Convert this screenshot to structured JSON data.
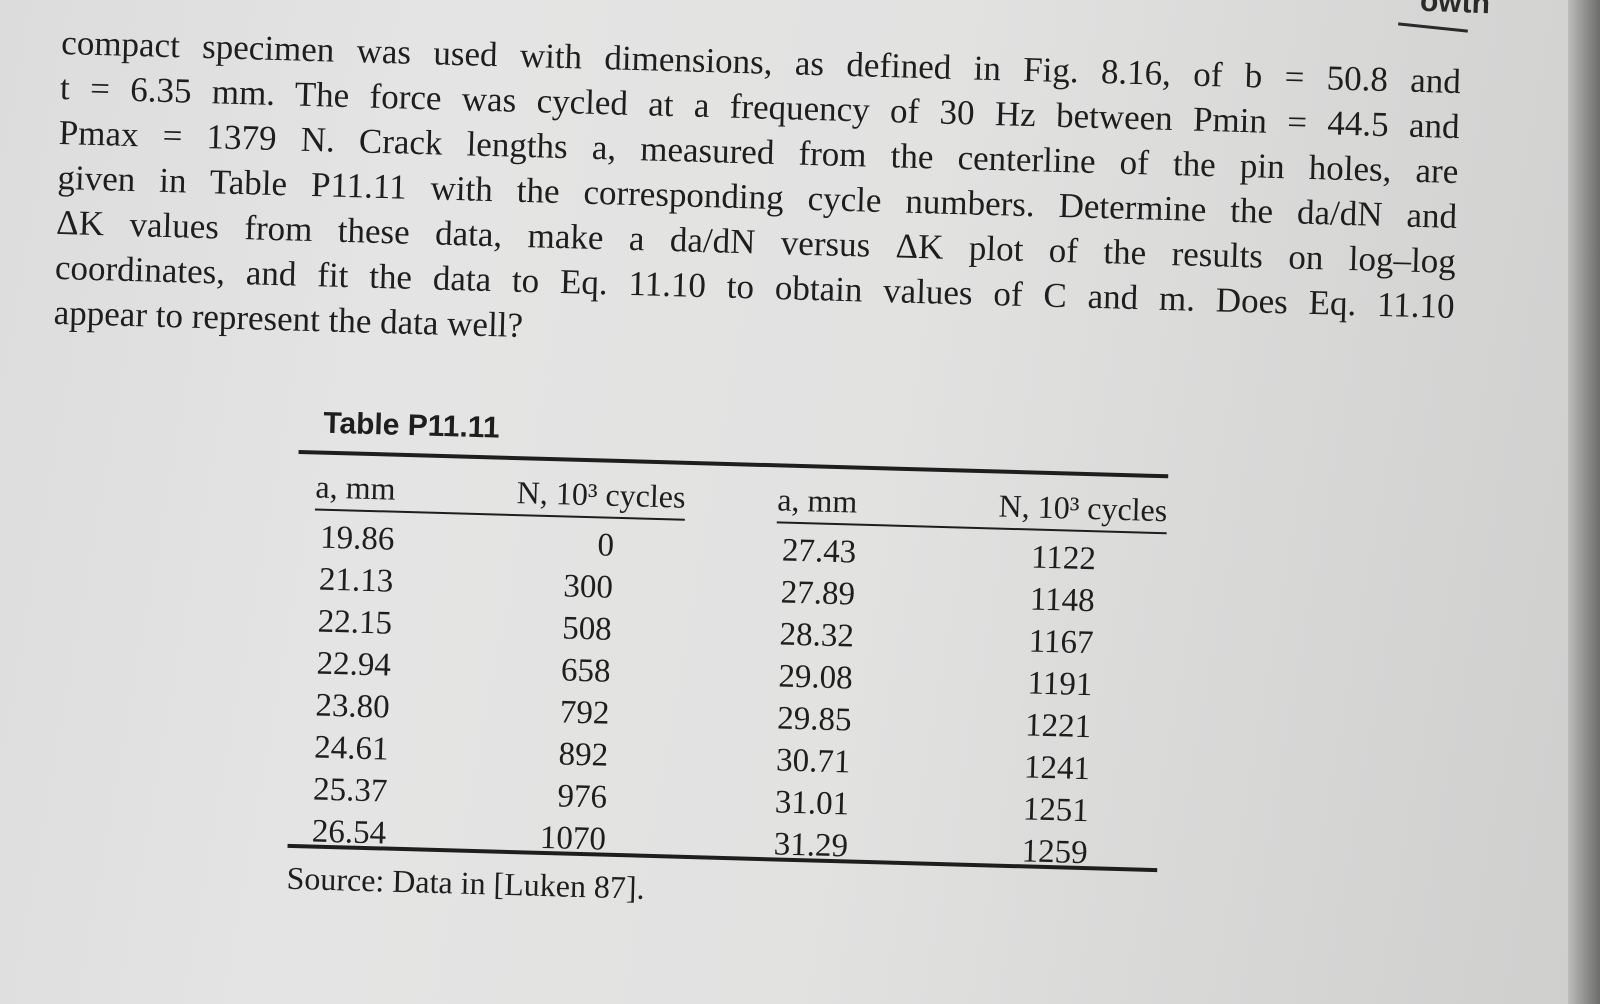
{
  "corner": {
    "text": "owth"
  },
  "problem": {
    "lines": [
      "compact specimen was used with dimensions, as defined in Fig. 8.16, of b = 50.8 and",
      "t = 6.35 mm. The force was cycled at a frequency of 30 Hz between Pmin = 44.5 and",
      "Pmax = 1379 N. Crack lengths a, measured from the centerline of the pin holes, are",
      "given in Table P11.11 with the corresponding cycle numbers. Determine the da/dN and",
      "ΔK values from these data, make a da/dN versus ΔK plot of the results on log–log",
      "coordinates, and fit the data to Eq. 11.10 to obtain values of C and m. Does Eq. 11.10",
      "appear to represent the data well?"
    ]
  },
  "table": {
    "title": "Table P11.11",
    "header_a": "a, mm",
    "header_n": "N, 10³ cycles",
    "left_rows": [
      {
        "a": "19.86",
        "n": "0"
      },
      {
        "a": "21.13",
        "n": "300"
      },
      {
        "a": "22.15",
        "n": "508"
      },
      {
        "a": "22.94",
        "n": "658"
      },
      {
        "a": "23.80",
        "n": "792"
      },
      {
        "a": "24.61",
        "n": "892"
      },
      {
        "a": "25.37",
        "n": "976"
      },
      {
        "a": "26.54",
        "n": "1070"
      }
    ],
    "right_rows": [
      {
        "a": "27.43",
        "n": "1122"
      },
      {
        "a": "27.89",
        "n": "1148"
      },
      {
        "a": "28.32",
        "n": "1167"
      },
      {
        "a": "29.08",
        "n": "1191"
      },
      {
        "a": "29.85",
        "n": "1221"
      },
      {
        "a": "30.71",
        "n": "1241"
      },
      {
        "a": "31.01",
        "n": "1251"
      },
      {
        "a": "31.29",
        "n": "1259"
      }
    ],
    "source": "Source: Data in [Luken 87]."
  }
}
